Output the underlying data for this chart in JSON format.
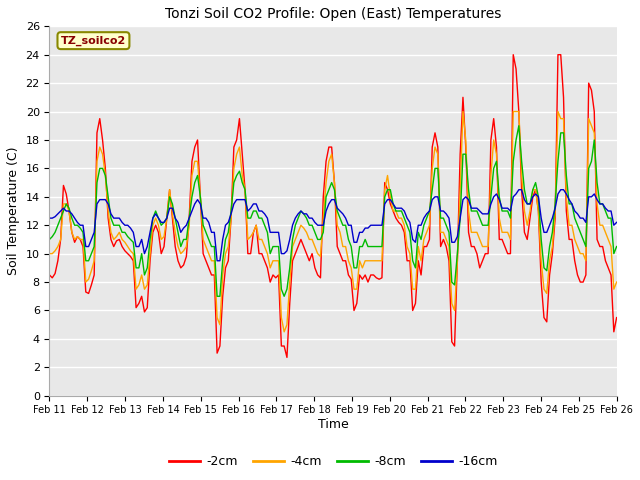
{
  "title": "Tonzi Soil CO2 Profile: Open (East) Temperatures",
  "xlabel": "Time",
  "ylabel": "Soil Temperature (C)",
  "watermark": "TZ_soilco2",
  "ylim": [
    0,
    26
  ],
  "yticks": [
    0,
    2,
    4,
    6,
    8,
    10,
    12,
    14,
    16,
    18,
    20,
    22,
    24,
    26
  ],
  "x_labels": [
    "Feb 11",
    "Feb 12",
    "Feb 13",
    "Feb 14",
    "Feb 15",
    "Feb 16",
    "Feb 17",
    "Feb 18",
    "Feb 19",
    "Feb 20",
    "Feb 21",
    "Feb 22",
    "Feb 23",
    "Feb 24",
    "Feb 25",
    "Feb 26"
  ],
  "colors": {
    "-2cm": "#ff0000",
    "-4cm": "#ffa500",
    "-8cm": "#00bb00",
    "-16cm": "#0000cc"
  },
  "legend_labels": [
    "-2cm",
    "-4cm",
    "-8cm",
    "-16cm"
  ],
  "figsize": [
    6.4,
    4.8
  ],
  "dpi": 100,
  "series": {
    "-2cm": [
      8.5,
      8.3,
      8.6,
      9.5,
      11.0,
      14.8,
      14.2,
      13.0,
      11.5,
      10.8,
      11.2,
      11.0,
      10.5,
      7.3,
      7.2,
      7.8,
      8.5,
      18.5,
      19.5,
      18.0,
      16.0,
      12.5,
      11.0,
      10.5,
      10.9,
      11.0,
      10.5,
      10.2,
      10.0,
      9.8,
      9.5,
      6.2,
      6.5,
      7.0,
      5.9,
      6.2,
      9.5,
      11.5,
      12.0,
      11.5,
      10.0,
      10.5,
      12.5,
      14.5,
      12.5,
      10.5,
      9.5,
      9.0,
      9.2,
      9.8,
      12.5,
      16.5,
      17.5,
      18.0,
      14.0,
      10.0,
      9.5,
      9.0,
      8.5,
      8.5,
      3.0,
      3.5,
      7.0,
      9.0,
      9.5,
      12.5,
      17.5,
      18.0,
      19.5,
      17.0,
      14.5,
      10.0,
      10.0,
      11.5,
      12.0,
      10.0,
      10.0,
      9.5,
      9.0,
      8.0,
      8.5,
      8.3,
      8.5,
      3.5,
      3.5,
      2.7,
      6.5,
      9.5,
      10.0,
      10.5,
      11.0,
      10.5,
      10.0,
      9.5,
      10.0,
      9.0,
      8.5,
      8.3,
      14.0,
      16.5,
      17.5,
      17.5,
      15.0,
      10.5,
      10.0,
      9.5,
      9.5,
      8.5,
      8.2,
      6.0,
      6.5,
      8.5,
      8.2,
      8.5,
      8.0,
      8.5,
      8.5,
      8.3,
      8.2,
      8.3,
      15.0,
      14.5,
      13.5,
      13.0,
      12.5,
      12.2,
      12.0,
      11.5,
      9.5,
      9.5,
      6.0,
      6.5,
      9.5,
      8.5,
      10.5,
      10.5,
      11.0,
      17.5,
      18.5,
      17.5,
      10.5,
      11.0,
      10.5,
      9.5,
      3.8,
      3.5,
      9.5,
      17.0,
      21.0,
      17.5,
      11.5,
      10.5,
      10.5,
      10.0,
      9.0,
      9.5,
      10.0,
      10.0,
      18.0,
      19.5,
      17.5,
      11.0,
      11.0,
      10.5,
      10.0,
      10.0,
      24.0,
      23.0,
      20.0,
      14.5,
      11.5,
      11.0,
      12.5,
      14.0,
      14.5,
      13.0,
      8.0,
      5.5,
      5.2,
      8.5,
      10.0,
      12.5,
      24.0,
      24.0,
      21.0,
      13.0,
      11.0,
      11.0,
      9.5,
      8.5,
      8.0,
      8.0,
      8.5,
      22.0,
      21.5,
      20.0,
      11.0,
      10.5,
      10.5,
      9.5,
      9.0,
      8.5,
      4.5,
      5.5
    ],
    "-4cm": [
      10.0,
      10.0,
      10.2,
      10.5,
      11.0,
      13.5,
      13.5,
      13.0,
      11.5,
      11.0,
      11.2,
      11.0,
      11.0,
      8.0,
      8.2,
      8.8,
      9.5,
      16.5,
      17.5,
      17.0,
      15.5,
      13.0,
      11.5,
      11.0,
      11.2,
      11.5,
      11.0,
      10.8,
      10.5,
      10.2,
      10.0,
      7.5,
      7.8,
      8.5,
      7.5,
      7.8,
      10.0,
      12.0,
      12.5,
      12.0,
      11.0,
      11.2,
      12.5,
      14.5,
      12.8,
      11.5,
      10.5,
      10.0,
      10.2,
      10.5,
      12.0,
      15.5,
      16.5,
      16.5,
      14.0,
      11.0,
      10.5,
      10.0,
      9.5,
      9.5,
      5.5,
      5.0,
      8.5,
      10.0,
      10.5,
      12.5,
      16.0,
      17.0,
      17.5,
      15.5,
      14.5,
      11.0,
      11.2,
      11.5,
      12.0,
      11.0,
      11.0,
      10.5,
      10.0,
      9.0,
      9.5,
      9.5,
      9.5,
      5.5,
      4.5,
      5.0,
      8.0,
      10.5,
      11.0,
      11.5,
      12.0,
      11.8,
      11.5,
      11.0,
      11.0,
      10.5,
      10.0,
      9.8,
      12.5,
      15.0,
      16.5,
      17.0,
      15.0,
      12.0,
      11.5,
      10.5,
      10.5,
      9.5,
      9.0,
      7.5,
      7.5,
      9.5,
      9.0,
      9.5,
      9.5,
      9.5,
      9.5,
      9.5,
      9.5,
      9.5,
      14.5,
      15.5,
      14.0,
      13.0,
      13.0,
      12.5,
      12.5,
      12.0,
      10.5,
      10.0,
      7.5,
      7.5,
      10.5,
      9.5,
      11.0,
      11.5,
      12.0,
      16.0,
      17.5,
      17.0,
      11.5,
      11.5,
      11.0,
      10.5,
      6.5,
      6.0,
      9.5,
      14.5,
      20.0,
      18.0,
      13.0,
      11.5,
      11.5,
      11.5,
      11.0,
      10.5,
      10.5,
      10.5,
      15.5,
      18.0,
      17.0,
      12.5,
      11.5,
      11.5,
      11.5,
      11.0,
      20.0,
      20.0,
      20.0,
      15.5,
      13.0,
      12.0,
      13.0,
      14.5,
      14.5,
      13.0,
      9.5,
      7.5,
      7.2,
      9.5,
      10.5,
      13.0,
      20.0,
      19.5,
      19.5,
      14.0,
      12.0,
      12.0,
      11.0,
      10.5,
      10.0,
      10.0,
      9.5,
      19.5,
      19.0,
      18.5,
      13.5,
      12.0,
      12.0,
      11.5,
      11.0,
      10.5,
      7.5,
      8.0
    ],
    "-8cm": [
      11.0,
      11.2,
      11.5,
      12.0,
      12.5,
      13.0,
      13.5,
      13.2,
      12.5,
      12.0,
      12.0,
      11.8,
      11.5,
      9.5,
      9.5,
      10.0,
      10.5,
      15.0,
      16.0,
      16.0,
      15.5,
      14.0,
      12.5,
      12.0,
      12.0,
      12.0,
      11.5,
      11.5,
      11.2,
      11.0,
      10.8,
      9.0,
      9.0,
      10.0,
      8.5,
      9.0,
      11.0,
      12.5,
      13.0,
      12.5,
      12.0,
      12.2,
      12.5,
      14.0,
      13.5,
      12.5,
      11.5,
      10.5,
      11.0,
      11.0,
      12.5,
      14.0,
      15.0,
      15.5,
      14.0,
      12.0,
      11.5,
      11.0,
      10.5,
      10.5,
      7.0,
      7.0,
      9.5,
      11.0,
      11.5,
      13.0,
      15.0,
      15.5,
      15.8,
      15.0,
      14.5,
      12.5,
      12.5,
      13.0,
      13.0,
      12.5,
      12.5,
      12.0,
      11.5,
      10.0,
      10.5,
      10.5,
      10.5,
      7.5,
      7.0,
      7.5,
      9.0,
      11.0,
      12.0,
      12.5,
      13.0,
      12.8,
      12.5,
      12.0,
      12.0,
      11.5,
      11.0,
      11.0,
      11.5,
      14.0,
      14.5,
      15.0,
      14.5,
      13.0,
      12.5,
      12.0,
      12.0,
      11.0,
      10.5,
      9.0,
      9.0,
      10.5,
      10.5,
      11.0,
      10.5,
      10.5,
      10.5,
      10.5,
      10.5,
      10.5,
      14.0,
      14.5,
      14.5,
      13.5,
      13.0,
      13.0,
      13.0,
      12.5,
      12.0,
      11.5,
      9.5,
      9.0,
      11.5,
      11.0,
      12.0,
      12.5,
      13.0,
      14.5,
      16.0,
      16.0,
      12.5,
      12.5,
      12.0,
      11.5,
      8.0,
      7.8,
      10.0,
      12.5,
      17.0,
      17.0,
      14.5,
      13.0,
      13.0,
      13.0,
      12.5,
      12.0,
      12.0,
      12.0,
      14.0,
      16.0,
      16.5,
      14.0,
      13.0,
      13.0,
      13.0,
      12.5,
      16.5,
      18.0,
      19.0,
      16.5,
      14.5,
      13.5,
      13.5,
      14.5,
      15.0,
      14.0,
      11.0,
      9.0,
      8.8,
      10.5,
      11.5,
      13.5,
      16.5,
      18.5,
      18.5,
      15.5,
      13.5,
      13.5,
      12.5,
      12.0,
      11.5,
      11.0,
      10.5,
      16.0,
      16.5,
      18.0,
      15.0,
      13.5,
      13.5,
      13.0,
      12.5,
      12.5,
      10.0,
      10.5
    ],
    "-16cm": [
      12.5,
      12.5,
      12.6,
      12.8,
      13.0,
      13.2,
      13.0,
      13.0,
      12.8,
      12.5,
      12.2,
      12.0,
      12.0,
      10.5,
      10.5,
      11.0,
      11.5,
      13.5,
      13.8,
      13.8,
      13.8,
      13.5,
      12.8,
      12.5,
      12.5,
      12.5,
      12.2,
      12.0,
      12.0,
      11.8,
      11.5,
      10.5,
      10.5,
      11.0,
      10.0,
      10.5,
      11.5,
      12.5,
      12.8,
      12.5,
      12.2,
      12.2,
      12.5,
      13.2,
      13.2,
      12.5,
      12.2,
      11.5,
      11.8,
      12.0,
      12.5,
      13.0,
      13.5,
      13.8,
      13.5,
      12.5,
      12.5,
      12.2,
      11.5,
      11.5,
      9.5,
      9.5,
      11.0,
      12.0,
      12.2,
      12.8,
      13.5,
      13.8,
      13.8,
      13.8,
      13.8,
      13.0,
      13.2,
      13.5,
      13.5,
      13.0,
      13.0,
      12.8,
      12.5,
      11.5,
      11.5,
      11.5,
      11.5,
      10.0,
      10.0,
      10.2,
      11.0,
      12.0,
      12.5,
      12.8,
      13.0,
      12.8,
      12.8,
      12.5,
      12.5,
      12.2,
      12.0,
      12.0,
      12.0,
      13.0,
      13.5,
      13.8,
      13.8,
      13.2,
      13.0,
      12.8,
      12.5,
      12.0,
      12.0,
      10.8,
      10.8,
      11.5,
      11.5,
      11.8,
      11.8,
      12.0,
      12.0,
      12.0,
      12.0,
      12.0,
      13.5,
      13.8,
      13.8,
      13.5,
      13.2,
      13.2,
      13.2,
      13.0,
      12.5,
      12.2,
      11.0,
      10.8,
      12.0,
      12.0,
      12.5,
      12.8,
      13.0,
      13.8,
      14.0,
      14.0,
      13.0,
      13.0,
      12.8,
      12.5,
      10.8,
      10.8,
      11.2,
      12.5,
      13.8,
      14.0,
      13.8,
      13.2,
      13.2,
      13.2,
      13.0,
      12.8,
      12.8,
      12.8,
      13.5,
      14.0,
      14.2,
      13.8,
      13.2,
      13.2,
      13.2,
      13.0,
      14.0,
      14.2,
      14.5,
      14.5,
      13.8,
      13.5,
      13.5,
      14.0,
      14.2,
      14.0,
      12.5,
      11.5,
      11.5,
      12.0,
      12.5,
      13.2,
      14.2,
      14.5,
      14.5,
      14.2,
      13.8,
      13.5,
      13.0,
      12.8,
      12.5,
      12.5,
      12.2,
      14.0,
      14.0,
      14.2,
      13.8,
      13.5,
      13.5,
      13.2,
      13.0,
      13.0,
      12.0,
      12.2
    ]
  }
}
